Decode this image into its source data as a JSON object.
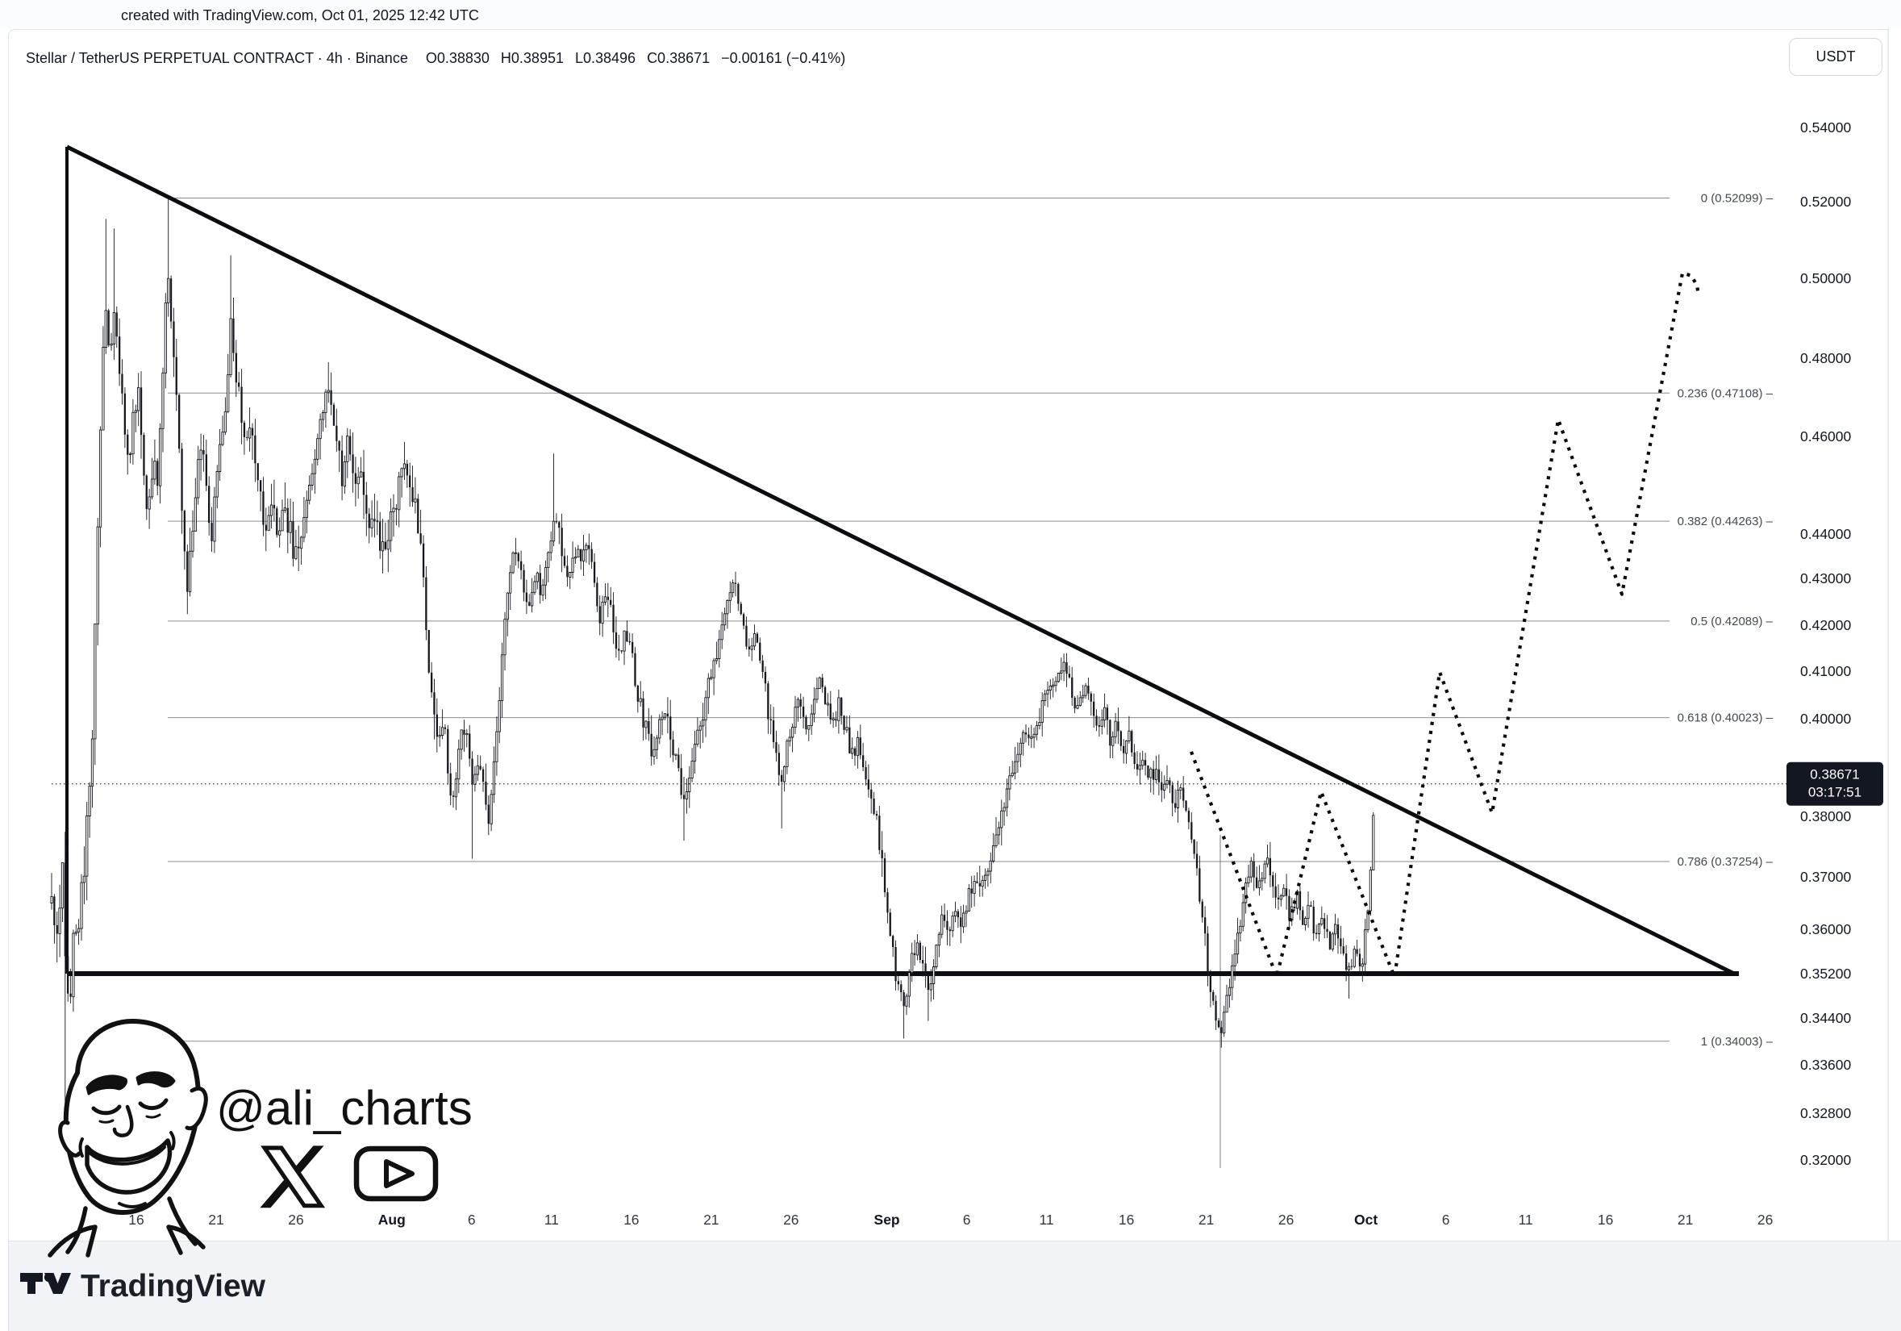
{
  "top_bar": {
    "text": "created with TradingView.com, Oct 01, 2025 12:42 UTC"
  },
  "header": {
    "symbol_title": "Stellar / TetherUS PERPETUAL CONTRACT · 4h · Binance",
    "open": "O0.38830",
    "high": "H0.38951",
    "low": "L0.38496",
    "close": "C0.38671",
    "change": "−0.00161 (−0.41%)"
  },
  "currency_button": {
    "label": "USDT"
  },
  "price_line": {
    "value": "0.38671",
    "countdown": "03:17:51",
    "price": 0.38671
  },
  "price_axis": {
    "labels": [
      {
        "text": "0.54000",
        "price": 0.54
      },
      {
        "text": "0.52000",
        "price": 0.52
      },
      {
        "text": "0.50000",
        "price": 0.5
      },
      {
        "text": "0.48000",
        "price": 0.48
      },
      {
        "text": "0.46000",
        "price": 0.46
      },
      {
        "text": "0.44000",
        "price": 0.44
      },
      {
        "text": "0.43000",
        "price": 0.43
      },
      {
        "text": "0.42000",
        "price": 0.42
      },
      {
        "text": "0.41000",
        "price": 0.41
      },
      {
        "text": "0.40000",
        "price": 0.4
      },
      {
        "text": "0.39000",
        "price": 0.39
      },
      {
        "text": "0.38000",
        "price": 0.38
      },
      {
        "text": "0.37000",
        "price": 0.37
      },
      {
        "text": "0.36000",
        "price": 0.36
      },
      {
        "text": "0.35200",
        "price": 0.352
      },
      {
        "text": "0.34400",
        "price": 0.344
      },
      {
        "text": "0.33600",
        "price": 0.336
      },
      {
        "text": "0.32800",
        "price": 0.328
      },
      {
        "text": "0.32000",
        "price": 0.32
      }
    ]
  },
  "time_axis": {
    "labels": [
      {
        "t": "16",
        "d": 0
      },
      {
        "t": "21",
        "d": 5
      },
      {
        "t": "26",
        "d": 10
      },
      {
        "t": "Aug",
        "d": 16,
        "b": 1
      },
      {
        "t": "6",
        "d": 21
      },
      {
        "t": "11",
        "d": 26
      },
      {
        "t": "16",
        "d": 31
      },
      {
        "t": "21",
        "d": 36
      },
      {
        "t": "26",
        "d": 41
      },
      {
        "t": "Sep",
        "d": 47,
        "b": 1
      },
      {
        "t": "6",
        "d": 52
      },
      {
        "t": "11",
        "d": 57
      },
      {
        "t": "16",
        "d": 62
      },
      {
        "t": "21",
        "d": 67
      },
      {
        "t": "26",
        "d": 72
      },
      {
        "t": "Oct",
        "d": 77,
        "b": 1
      },
      {
        "t": "6",
        "d": 82
      },
      {
        "t": "11",
        "d": 87
      },
      {
        "t": "16",
        "d": 92
      },
      {
        "t": "21",
        "d": 97
      },
      {
        "t": "26",
        "d": 102
      }
    ]
  },
  "watermark": {
    "handle": "@ali_charts",
    "icons": [
      "x-logo",
      "play-button"
    ]
  },
  "footer": {
    "brand": "TradingView"
  },
  "colors": {
    "ink": "#131722",
    "border": "#e0e3eb",
    "fib_line": "#8a8d97",
    "fib_text": "#454950",
    "badge_bg": "#131722",
    "badge_text": "#ffffff",
    "footer_bg": "#f1f3f6",
    "black": "#0c0d10"
  },
  "chart_data": {
    "type": "candlestick",
    "symbol": "Stellar / TetherUS",
    "contract": "PERPETUAL CONTRACT",
    "exchange": "Binance",
    "interval": "4h",
    "quote": "USDT",
    "ohlc_last": {
      "open": 0.3883,
      "high": 0.38951,
      "low": 0.38496,
      "close": 0.38671,
      "change": -0.00161,
      "change_pct": -0.41
    },
    "ylim": [
      0.32,
      0.555
    ],
    "scale": "log",
    "grid": "off",
    "pattern": "descending triangle with dotted breakout projection",
    "y_ticks": [
      [
        0.54,
        158
      ],
      [
        0.52,
        250
      ],
      [
        0.5,
        345
      ],
      [
        0.48,
        444
      ],
      [
        0.46,
        541
      ],
      [
        0.44,
        662
      ],
      [
        0.43,
        717
      ],
      [
        0.42,
        775
      ],
      [
        0.41,
        832
      ],
      [
        0.4,
        891
      ],
      [
        0.39,
        952
      ],
      [
        0.38,
        1012
      ],
      [
        0.37,
        1087
      ],
      [
        0.36,
        1152
      ],
      [
        0.352,
        1207
      ],
      [
        0.344,
        1262
      ],
      [
        0.336,
        1320
      ],
      [
        0.328,
        1380
      ],
      [
        0.32,
        1438
      ]
    ],
    "fib_levels": [
      {
        "label": "0 (0.52099)",
        "ratio": 0,
        "price": 0.52099
      },
      {
        "label": "0.236 (0.47108)",
        "ratio": 0.236,
        "price": 0.47108
      },
      {
        "label": "0.382 (0.44263)",
        "ratio": 0.382,
        "price": 0.44263
      },
      {
        "label": "0.5 (0.42089)",
        "ratio": 0.5,
        "price": 0.42089
      },
      {
        "label": "0.618 (0.40023)",
        "ratio": 0.618,
        "price": 0.40023
      },
      {
        "label": "0.786 (0.37254)",
        "ratio": 0.786,
        "price": 0.37254
      },
      {
        "label": "1 (0.34003)",
        "ratio": 1,
        "price": 0.34003
      }
    ],
    "triangle": {
      "left_x": 83,
      "top_y": 182,
      "top_price": 0.5355,
      "apex_x": 2152,
      "support_price": 0.352,
      "support_y": 1207
    },
    "fib_anchor_vline": {
      "x": 1513,
      "y1": 1035,
      "y2": 1448
    },
    "price_path": [
      [
        64,
        0.365
      ],
      [
        70,
        0.356
      ],
      [
        75,
        0.368
      ],
      [
        78,
        0.372
      ],
      [
        82,
        0.35
      ],
      [
        86,
        0.344
      ],
      [
        90,
        0.362
      ],
      [
        96,
        0.354
      ],
      [
        102,
        0.368
      ],
      [
        108,
        0.378
      ],
      [
        114,
        0.392
      ],
      [
        120,
        0.435
      ],
      [
        126,
        0.472
      ],
      [
        130,
        0.497
      ],
      [
        136,
        0.478
      ],
      [
        142,
        0.49
      ],
      [
        148,
        0.474
      ],
      [
        154,
        0.464
      ],
      [
        160,
        0.456
      ],
      [
        166,
        0.466
      ],
      [
        172,
        0.474
      ],
      [
        178,
        0.452
      ],
      [
        184,
        0.442
      ],
      [
        190,
        0.458
      ],
      [
        196,
        0.448
      ],
      [
        202,
        0.478
      ],
      [
        208,
        0.505
      ],
      [
        214,
        0.486
      ],
      [
        220,
        0.466
      ],
      [
        226,
        0.446
      ],
      [
        232,
        0.426
      ],
      [
        238,
        0.44
      ],
      [
        244,
        0.452
      ],
      [
        250,
        0.46
      ],
      [
        256,
        0.45
      ],
      [
        262,
        0.44
      ],
      [
        268,
        0.452
      ],
      [
        274,
        0.46
      ],
      [
        280,
        0.468
      ],
      [
        286,
        0.49
      ],
      [
        292,
        0.478
      ],
      [
        298,
        0.468
      ],
      [
        304,
        0.458
      ],
      [
        312,
        0.464
      ],
      [
        320,
        0.45
      ],
      [
        328,
        0.44
      ],
      [
        336,
        0.448
      ],
      [
        344,
        0.438
      ],
      [
        352,
        0.446
      ],
      [
        360,
        0.44
      ],
      [
        368,
        0.434
      ],
      [
        376,
        0.442
      ],
      [
        384,
        0.45
      ],
      [
        392,
        0.458
      ],
      [
        400,
        0.466
      ],
      [
        408,
        0.472
      ],
      [
        416,
        0.462
      ],
      [
        424,
        0.452
      ],
      [
        432,
        0.46
      ],
      [
        440,
        0.45
      ],
      [
        448,
        0.456
      ],
      [
        456,
        0.442
      ],
      [
        464,
        0.446
      ],
      [
        472,
        0.435
      ],
      [
        480,
        0.44
      ],
      [
        488,
        0.446
      ],
      [
        496,
        0.45
      ],
      [
        504,
        0.454
      ],
      [
        512,
        0.448
      ],
      [
        520,
        0.44
      ],
      [
        526,
        0.425
      ],
      [
        532,
        0.412
      ],
      [
        538,
        0.402
      ],
      [
        544,
        0.394
      ],
      [
        550,
        0.399
      ],
      [
        556,
        0.389
      ],
      [
        562,
        0.383
      ],
      [
        568,
        0.392
      ],
      [
        574,
        0.399
      ],
      [
        580,
        0.394
      ],
      [
        586,
        0.385
      ],
      [
        592,
        0.391
      ],
      [
        598,
        0.387
      ],
      [
        604,
        0.379
      ],
      [
        610,
        0.385
      ],
      [
        616,
        0.397
      ],
      [
        622,
        0.41
      ],
      [
        628,
        0.424
      ],
      [
        634,
        0.434
      ],
      [
        640,
        0.438
      ],
      [
        648,
        0.43
      ],
      [
        656,
        0.424
      ],
      [
        664,
        0.432
      ],
      [
        672,
        0.426
      ],
      [
        680,
        0.436
      ],
      [
        688,
        0.446
      ],
      [
        696,
        0.436
      ],
      [
        704,
        0.43
      ],
      [
        712,
        0.438
      ],
      [
        720,
        0.432
      ],
      [
        728,
        0.44
      ],
      [
        736,
        0.43
      ],
      [
        744,
        0.422
      ],
      [
        752,
        0.428
      ],
      [
        760,
        0.42
      ],
      [
        768,
        0.414
      ],
      [
        776,
        0.42
      ],
      [
        784,
        0.412
      ],
      [
        792,
        0.404
      ],
      [
        800,
        0.398
      ],
      [
        808,
        0.394
      ],
      [
        816,
        0.398
      ],
      [
        824,
        0.402
      ],
      [
        832,
        0.396
      ],
      [
        840,
        0.39
      ],
      [
        848,
        0.384
      ],
      [
        856,
        0.39
      ],
      [
        864,
        0.396
      ],
      [
        872,
        0.402
      ],
      [
        880,
        0.408
      ],
      [
        888,
        0.414
      ],
      [
        896,
        0.42
      ],
      [
        904,
        0.426
      ],
      [
        912,
        0.4295
      ],
      [
        920,
        0.422
      ],
      [
        928,
        0.414
      ],
      [
        936,
        0.42
      ],
      [
        944,
        0.412
      ],
      [
        952,
        0.402
      ],
      [
        960,
        0.394
      ],
      [
        968,
        0.388
      ],
      [
        976,
        0.394
      ],
      [
        984,
        0.4
      ],
      [
        992,
        0.404
      ],
      [
        1000,
        0.398
      ],
      [
        1008,
        0.404
      ],
      [
        1016,
        0.41
      ],
      [
        1024,
        0.404
      ],
      [
        1032,
        0.398
      ],
      [
        1040,
        0.404
      ],
      [
        1048,
        0.398
      ],
      [
        1056,
        0.392
      ],
      [
        1064,
        0.396
      ],
      [
        1072,
        0.39
      ],
      [
        1080,
        0.384
      ],
      [
        1088,
        0.378
      ],
      [
        1096,
        0.37
      ],
      [
        1104,
        0.36
      ],
      [
        1112,
        0.35
      ],
      [
        1120,
        0.346
      ],
      [
        1128,
        0.352
      ],
      [
        1136,
        0.358
      ],
      [
        1144,
        0.354
      ],
      [
        1152,
        0.35
      ],
      [
        1160,
        0.356
      ],
      [
        1168,
        0.362
      ],
      [
        1176,
        0.358
      ],
      [
        1184,
        0.364
      ],
      [
        1192,
        0.36
      ],
      [
        1200,
        0.366
      ],
      [
        1208,
        0.37
      ],
      [
        1216,
        0.366
      ],
      [
        1224,
        0.372
      ],
      [
        1232,
        0.376
      ],
      [
        1240,
        0.38
      ],
      [
        1248,
        0.384
      ],
      [
        1256,
        0.39
      ],
      [
        1264,
        0.394
      ],
      [
        1272,
        0.398
      ],
      [
        1280,
        0.394
      ],
      [
        1288,
        0.4
      ],
      [
        1296,
        0.406
      ],
      [
        1304,
        0.408
      ],
      [
        1312,
        0.408
      ],
      [
        1320,
        0.411
      ],
      [
        1328,
        0.406
      ],
      [
        1336,
        0.402
      ],
      [
        1344,
        0.407
      ],
      [
        1352,
        0.403
      ],
      [
        1360,
        0.398
      ],
      [
        1368,
        0.402
      ],
      [
        1376,
        0.396
      ],
      [
        1384,
        0.399
      ],
      [
        1392,
        0.393
      ],
      [
        1400,
        0.396
      ],
      [
        1408,
        0.39
      ],
      [
        1416,
        0.393
      ],
      [
        1424,
        0.387
      ],
      [
        1432,
        0.39
      ],
      [
        1440,
        0.385
      ],
      [
        1448,
        0.388
      ],
      [
        1456,
        0.382
      ],
      [
        1464,
        0.385
      ],
      [
        1472,
        0.379
      ],
      [
        1480,
        0.374
      ],
      [
        1488,
        0.366
      ],
      [
        1494,
        0.358
      ],
      [
        1500,
        0.35
      ],
      [
        1506,
        0.344
      ],
      [
        1513,
        0.342
      ],
      [
        1520,
        0.347
      ],
      [
        1528,
        0.354
      ],
      [
        1536,
        0.36
      ],
      [
        1544,
        0.367
      ],
      [
        1552,
        0.372
      ],
      [
        1560,
        0.368
      ],
      [
        1568,
        0.373
      ],
      [
        1576,
        0.37
      ],
      [
        1584,
        0.364
      ],
      [
        1592,
        0.368
      ],
      [
        1600,
        0.362
      ],
      [
        1608,
        0.366
      ],
      [
        1616,
        0.36
      ],
      [
        1624,
        0.364
      ],
      [
        1632,
        0.358
      ],
      [
        1640,
        0.362
      ],
      [
        1648,
        0.357
      ],
      [
        1656,
        0.36
      ],
      [
        1664,
        0.355
      ],
      [
        1672,
        0.352
      ],
      [
        1680,
        0.356
      ],
      [
        1688,
        0.353
      ],
      [
        1694,
        0.36
      ],
      [
        1698,
        0.366
      ],
      [
        1701,
        0.376
      ],
      [
        1705,
        0.3867
      ]
    ],
    "wick_overrides": [
      {
        "x": 82,
        "lo": 0.3265
      },
      {
        "x": 130,
        "hi": 0.5155
      },
      {
        "x": 142,
        "hi": 0.513
      },
      {
        "x": 208,
        "hi": 0.52099
      },
      {
        "x": 286,
        "hi": 0.506
      },
      {
        "x": 408,
        "hi": 0.479
      },
      {
        "x": 586,
        "lo": 0.373
      },
      {
        "x": 688,
        "hi": 0.4565
      },
      {
        "x": 848,
        "lo": 0.376
      },
      {
        "x": 912,
        "hi": 0.4315
      },
      {
        "x": 968,
        "lo": 0.378
      },
      {
        "x": 1120,
        "lo": 0.3405
      },
      {
        "x": 1152,
        "lo": 0.3435
      },
      {
        "x": 1320,
        "hi": 0.4135
      },
      {
        "x": 1513,
        "lo": 0.34003
      },
      {
        "x": 1672,
        "lo": 0.3475
      },
      {
        "x": 1705,
        "hi": 0.38951
      }
    ],
    "projection_path": [
      [
        1477,
        0.3933
      ],
      [
        1583,
        0.3514
      ],
      [
        1638,
        0.3851
      ],
      [
        1729,
        0.3514
      ],
      [
        1785,
        0.4098
      ],
      [
        1850,
        0.3807
      ],
      [
        1932,
        0.4643
      ],
      [
        2011,
        0.4266
      ],
      [
        2086,
        0.5014
      ],
      [
        2097,
        0.5007
      ],
      [
        2104,
        0.4982
      ],
      [
        2106,
        0.4958
      ]
    ]
  }
}
